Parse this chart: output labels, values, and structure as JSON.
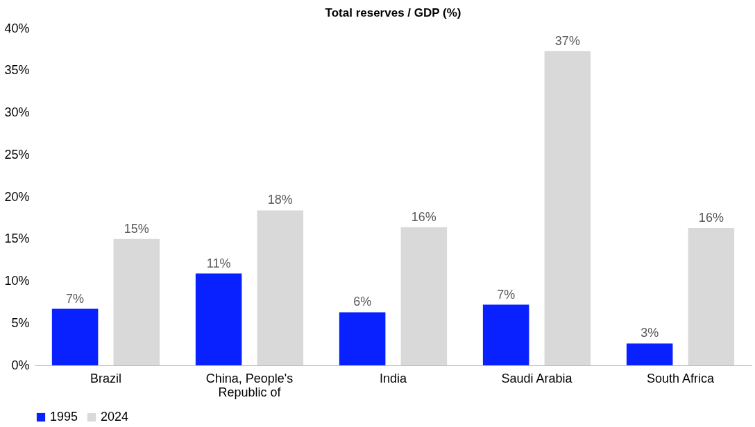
{
  "chart_data": {
    "type": "bar",
    "title": "Total reserves / GDP (%)",
    "categories": [
      "Brazil",
      "China, People's Republic of",
      "India",
      "Saudi Arabia",
      "South Africa"
    ],
    "series": [
      {
        "name": "1995",
        "color": "#0a21ff",
        "values": [
          6.7,
          10.9,
          6.3,
          7.2,
          2.6
        ],
        "value_labels": [
          "7%",
          "11%",
          "6%",
          "7%",
          "3%"
        ]
      },
      {
        "name": "2024",
        "color": "#d9d9d9",
        "values": [
          15.0,
          18.4,
          16.4,
          37.3,
          16.3
        ],
        "value_labels": [
          "15%",
          "18%",
          "16%",
          "37%",
          "16%"
        ]
      }
    ],
    "ylim": [
      0,
      40
    ],
    "yticks": [
      {
        "value": 0,
        "label": "0%"
      },
      {
        "value": 5,
        "label": "5%"
      },
      {
        "value": 10,
        "label": "10%"
      },
      {
        "value": 15,
        "label": "15%"
      },
      {
        "value": 20,
        "label": "20%"
      },
      {
        "value": 25,
        "label": "25%"
      },
      {
        "value": 30,
        "label": "30%"
      },
      {
        "value": 35,
        "label": "35%"
      },
      {
        "value": 40,
        "label": "40%"
      }
    ],
    "grid": false,
    "legend": "bottom"
  }
}
